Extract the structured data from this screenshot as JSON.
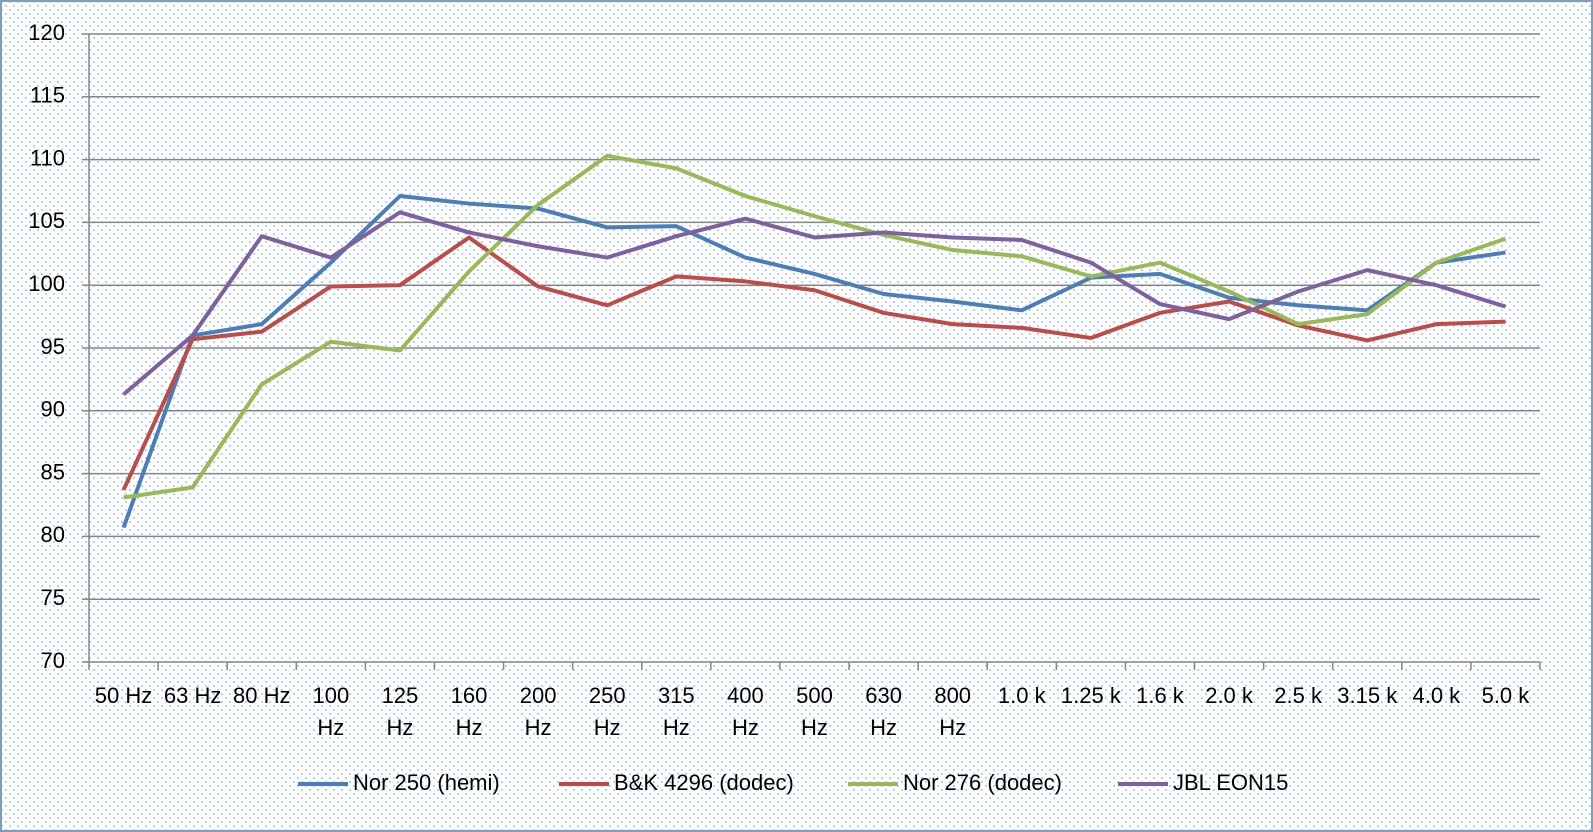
{
  "chart_data": {
    "type": "line",
    "categories": [
      "50 Hz",
      "63 Hz",
      "80 Hz",
      "100 Hz",
      "125 Hz",
      "160 Hz",
      "200 Hz",
      "250 Hz",
      "315 Hz",
      "400 Hz",
      "500 Hz",
      "630 Hz",
      "800 Hz",
      "1.0 k",
      "1.25 k",
      "1.6 k",
      "2.0 k",
      "2.5 k",
      "3.15 k",
      "4.0 k",
      "5.0 k"
    ],
    "series": [
      {
        "name": "Nor 250 (hemi)",
        "color": "#4a7ebb",
        "values": [
          80.7,
          96.0,
          96.9,
          101.8,
          107.1,
          106.5,
          106.1,
          104.6,
          104.7,
          102.2,
          100.9,
          99.3,
          98.7,
          98.0,
          100.6,
          100.9,
          99.0,
          98.4,
          98.0,
          101.8,
          102.6
        ]
      },
      {
        "name": "B&K 4296 (dodec)",
        "color": "#be4b48",
        "values": [
          83.7,
          95.7,
          96.3,
          99.9,
          100.0,
          103.8,
          99.9,
          98.4,
          100.7,
          100.3,
          99.6,
          97.8,
          96.9,
          96.6,
          95.8,
          97.8,
          98.7,
          96.8,
          95.6,
          96.9,
          97.1
        ]
      },
      {
        "name": "Nor 276 (dodec)",
        "color": "#98b954",
        "values": [
          83.1,
          83.9,
          92.1,
          95.5,
          94.8,
          101.1,
          106.4,
          110.3,
          109.3,
          107.1,
          105.5,
          104.0,
          102.8,
          102.3,
          100.7,
          101.8,
          99.5,
          96.9,
          97.7,
          101.8,
          103.7
        ]
      },
      {
        "name": "JBL EON15",
        "color": "#7d60a0",
        "values": [
          91.3,
          96.0,
          103.9,
          102.2,
          105.8,
          104.2,
          103.1,
          102.2,
          103.9,
          105.3,
          103.8,
          104.2,
          103.8,
          103.6,
          101.8,
          98.5,
          97.3,
          99.5,
          101.2,
          100.0,
          98.3
        ]
      }
    ],
    "ylim": [
      70,
      120
    ],
    "yticks": [
      70,
      75,
      80,
      85,
      90,
      95,
      100,
      105,
      110,
      115,
      120
    ],
    "grid": true,
    "legend": "bottom"
  }
}
